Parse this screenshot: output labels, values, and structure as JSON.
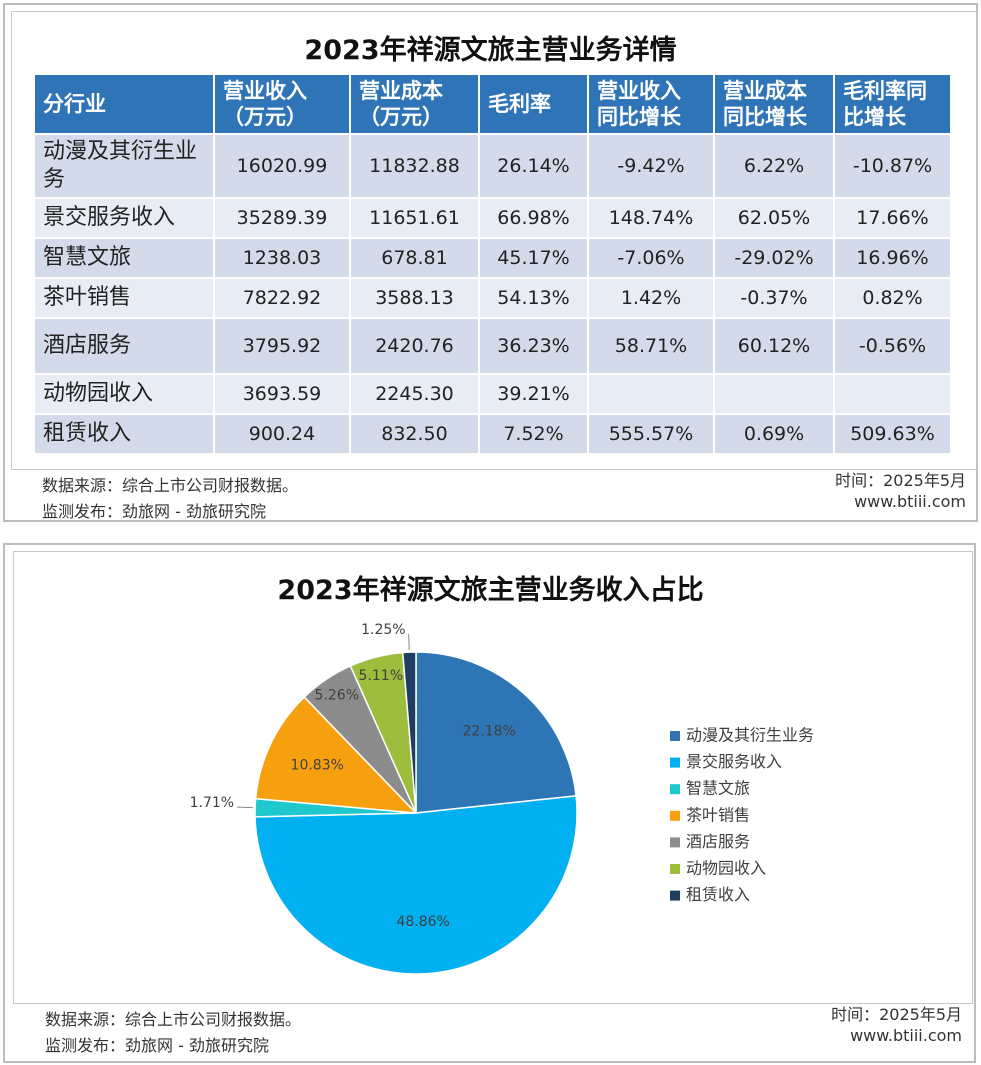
{
  "table": {
    "title": "2023年祥源文旅主营业务详情",
    "header": [
      "分行业",
      "营业收入\n（万元）",
      "营业成本\n（万元）",
      "毛利率",
      "营业收入\n同比增长",
      "营业成本\n同比增长",
      "毛利率同\n比增长"
    ],
    "rows": [
      [
        "动漫及其衍生业务",
        "16020.99",
        "11832.88",
        "26.14%",
        "-9.42%",
        "6.22%",
        "-10.87%"
      ],
      [
        "景交服务收入",
        "35289.39",
        "11651.61",
        "66.98%",
        "148.74%",
        "62.05%",
        "17.66%"
      ],
      [
        "智慧文旅",
        "1238.03",
        "678.81",
        "45.17%",
        "-7.06%",
        "-29.02%",
        "16.96%"
      ],
      [
        "茶叶销售",
        "7822.92",
        "3588.13",
        "54.13%",
        "1.42%",
        "-0.37%",
        "0.82%"
      ],
      [
        "酒店服务",
        "3795.92",
        "2420.76",
        "36.23%",
        "58.71%",
        "60.12%",
        "-0.56%"
      ],
      [
        "动物园收入",
        "3693.59",
        "2245.30",
        "39.21%",
        null,
        null,
        null
      ],
      [
        "租赁收入",
        "900.24",
        "832.50",
        "7.52%",
        "555.57%",
        "0.69%",
        "509.63%"
      ]
    ]
  },
  "footer": {
    "source": "数据来源：综合上市公司财报数据。",
    "publisher": "监测发布：劲旅网 - 劲旅研究院",
    "time": "时间：2025年5月",
    "site": "www.btiii.com"
  },
  "chart_data": {
    "type": "pie",
    "title": "2023年祥源文旅主营业务收入占比",
    "categories": [
      "动漫及其衍生业务",
      "景交服务收入",
      "智慧文旅",
      "茶叶销售",
      "酒店服务",
      "动物园收入",
      "租赁收入"
    ],
    "values": [
      22.18,
      48.86,
      1.71,
      10.83,
      5.26,
      5.11,
      1.25
    ],
    "value_labels": [
      "22.18%",
      "48.86%",
      "1.71%",
      "10.83%",
      "5.26%",
      "5.11%",
      "1.25%"
    ],
    "colors": [
      "#2e75b6",
      "#00b0f0",
      "#1fc8cc",
      "#f7a00f",
      "#8c8c8c",
      "#9dbd3c",
      "#1f3d63"
    ],
    "legend": "right"
  }
}
